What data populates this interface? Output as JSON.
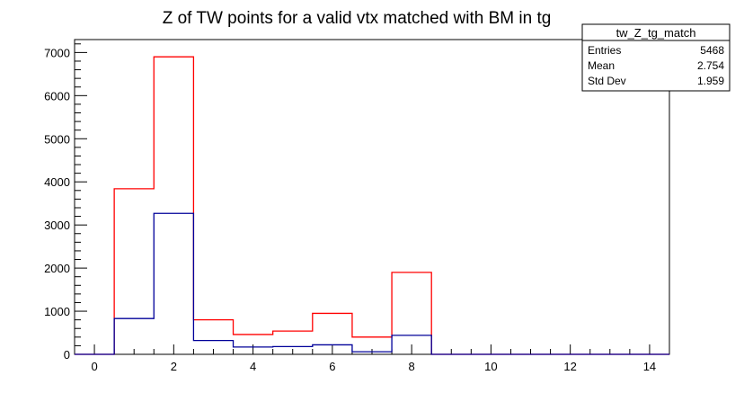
{
  "chart_data": {
    "type": "step-histogram",
    "title": "Z of TW points for a valid vtx matched with BM in tg",
    "xlabel": "",
    "ylabel": "",
    "xlim": [
      -0.5,
      14.5
    ],
    "ylim": [
      0,
      7300
    ],
    "x_ticks": [
      "0",
      "2",
      "4",
      "6",
      "8",
      "10",
      "12",
      "14"
    ],
    "y_ticks": [
      "0",
      "1000",
      "2000",
      "3000",
      "4000",
      "5000",
      "6000",
      "7000"
    ],
    "bin_edges": [
      -0.5,
      0.5,
      1.5,
      2.5,
      3.5,
      4.5,
      5.5,
      6.5,
      7.5,
      8.5,
      9.5,
      10.5,
      11.5,
      12.5,
      13.5,
      14.5
    ],
    "series": [
      {
        "color": "#ff0000",
        "values": [
          0,
          3840,
          6900,
          800,
          460,
          540,
          950,
          400,
          1900,
          0,
          0,
          0,
          0,
          0,
          0
        ]
      },
      {
        "color": "#000099",
        "values": [
          0,
          830,
          3270,
          320,
          170,
          180,
          220,
          60,
          440,
          0,
          0,
          0,
          0,
          0,
          0
        ]
      }
    ],
    "grid": false,
    "legend": "none"
  },
  "stats_box": {
    "name": "tw_Z_tg_match",
    "rows": [
      {
        "label": "Entries",
        "value": "5468"
      },
      {
        "label": "Mean",
        "value": "2.754"
      },
      {
        "label": "Std Dev",
        "value": "1.959"
      }
    ]
  }
}
